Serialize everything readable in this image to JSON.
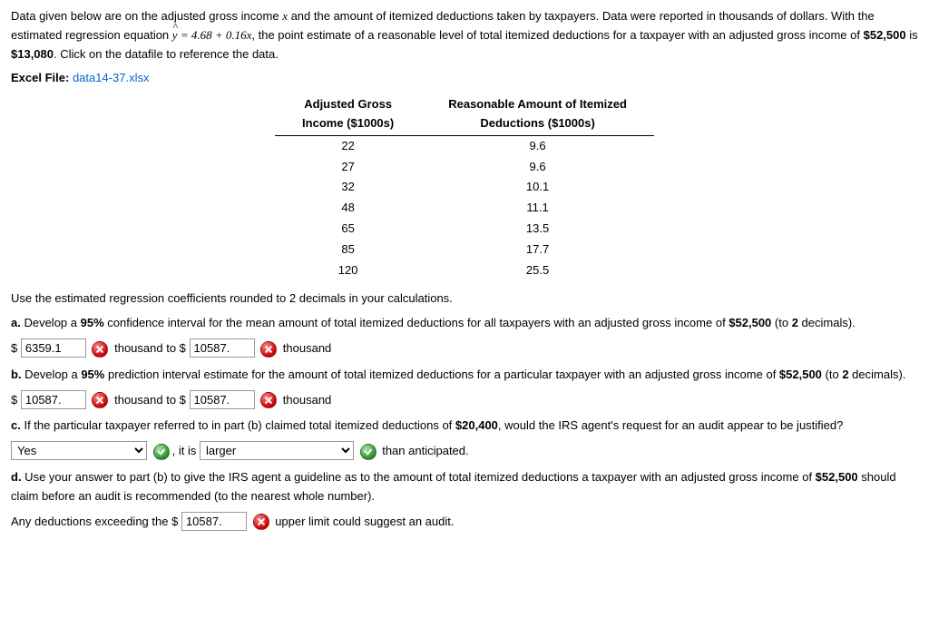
{
  "intro": {
    "p1_a": "Data given below are on the adjusted gross income ",
    "p1_var": "x",
    "p1_b": " and the amount of itemized deductions taken by taxpayers. Data were reported in thousands of dollars. With the estimated regression equation ",
    "eq_lhs": "y",
    "eq_rhs": " = 4.68 + 0.16x",
    "p1_c": ", the point estimate of a reasonable level of total itemized deductions for a taxpayer with an adjusted gross income of ",
    "amt1": "$52,500",
    "p1_d": " is ",
    "amt2": "$13,080",
    "p1_e": ". Click on the datafile to reference the data.",
    "excel_label": "Excel File:",
    "excel_link": "data14-37.xlsx"
  },
  "table": {
    "col1_a": "Adjusted Gross",
    "col1_b": "Income ($1000s)",
    "col2_a": "Reasonable Amount of Itemized",
    "col2_b": "Deductions ($1000s)",
    "rows": [
      {
        "x": "22",
        "y": "9.6"
      },
      {
        "x": "27",
        "y": "9.6"
      },
      {
        "x": "32",
        "y": "10.1"
      },
      {
        "x": "48",
        "y": "11.1"
      },
      {
        "x": "65",
        "y": "13.5"
      },
      {
        "x": "85",
        "y": "17.7"
      },
      {
        "x": "120",
        "y": "25.5"
      }
    ]
  },
  "instr": "Use the estimated regression coefficients rounded to 2 decimals in your calculations.",
  "a": {
    "label": "a.",
    "text_a": " Develop a ",
    "pct": "95%",
    "text_b": " confidence interval for the mean amount of total itemized deductions for all taxpayers with an adjusted gross income of ",
    "amt": "$52,500",
    "text_c": " (to ",
    "dec": "2",
    "text_d": " decimals).",
    "dollar": "$",
    "v1": "6359.1",
    "mid": " thousand to $",
    "v2": "10587.",
    "end": " thousand"
  },
  "b": {
    "label": "b.",
    "text_a": " Develop a ",
    "pct": "95%",
    "text_b": " prediction interval estimate for the amount of total itemized deductions for a particular taxpayer with an adjusted gross income of ",
    "amt": "$52,500",
    "text_c": " (to ",
    "dec": "2",
    "text_d": " decimals).",
    "dollar": "$",
    "v1": "10587.",
    "mid": " thousand to $",
    "v2": "10587.",
    "end": " thousand"
  },
  "c": {
    "label": "c.",
    "text_a": " If the particular taxpayer referred to in part (b) claimed total itemized deductions of ",
    "amt": "$20,400",
    "text_b": ", would the IRS agent's request for an audit appear to be justified?",
    "sel1": "Yes",
    "mid1": ", it is ",
    "sel2": "larger",
    "end": " than anticipated."
  },
  "d": {
    "label": "d.",
    "text_a": " Use your answer to part (b) to give the IRS agent a guideline as to the amount of total itemized deductions a taxpayer with an adjusted gross income of ",
    "amt": "$52,500",
    "text_b": " should claim before an audit is recommended (to the nearest whole number).",
    "pre": "Any deductions exceeding the $",
    "v": "10587.",
    "post": " upper limit could suggest an audit."
  }
}
